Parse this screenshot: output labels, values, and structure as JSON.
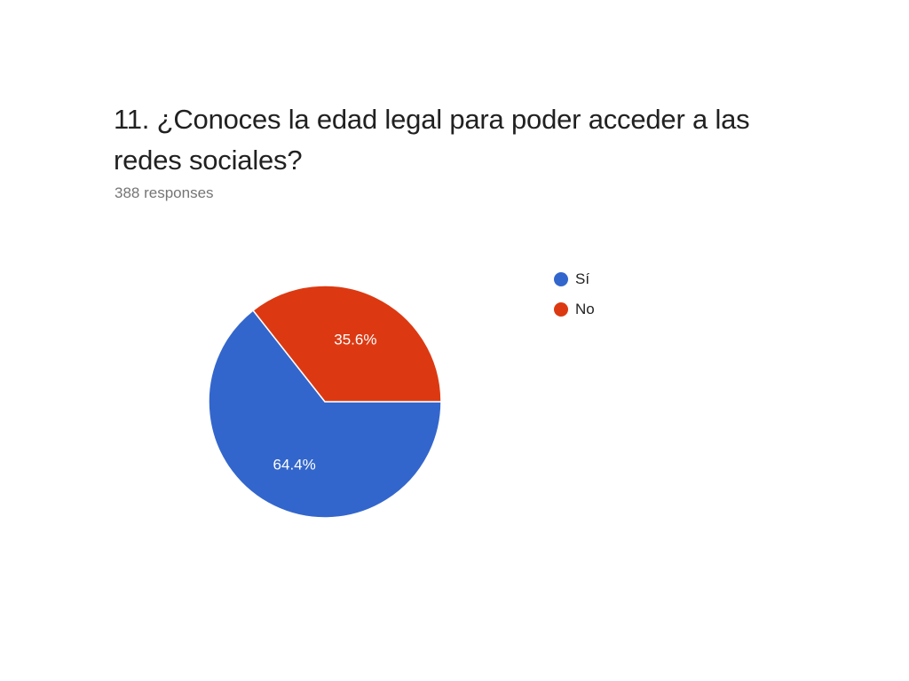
{
  "header": {
    "title": "11. ¿Conoces la edad legal para poder acceder a las redes sociales?",
    "subtitle": "388 responses"
  },
  "chart_data": {
    "type": "pie",
    "title": "11. ¿Conoces la edad legal para poder acceder a las redes sociales?",
    "subtitle": "388 responses",
    "legend_position": "right",
    "slices": [
      {
        "label": "Sí",
        "value": 64.4,
        "display": "64.4%",
        "color": "#3366cc"
      },
      {
        "label": "No",
        "value": 35.6,
        "display": "35.6%",
        "color": "#dc3912"
      }
    ]
  }
}
